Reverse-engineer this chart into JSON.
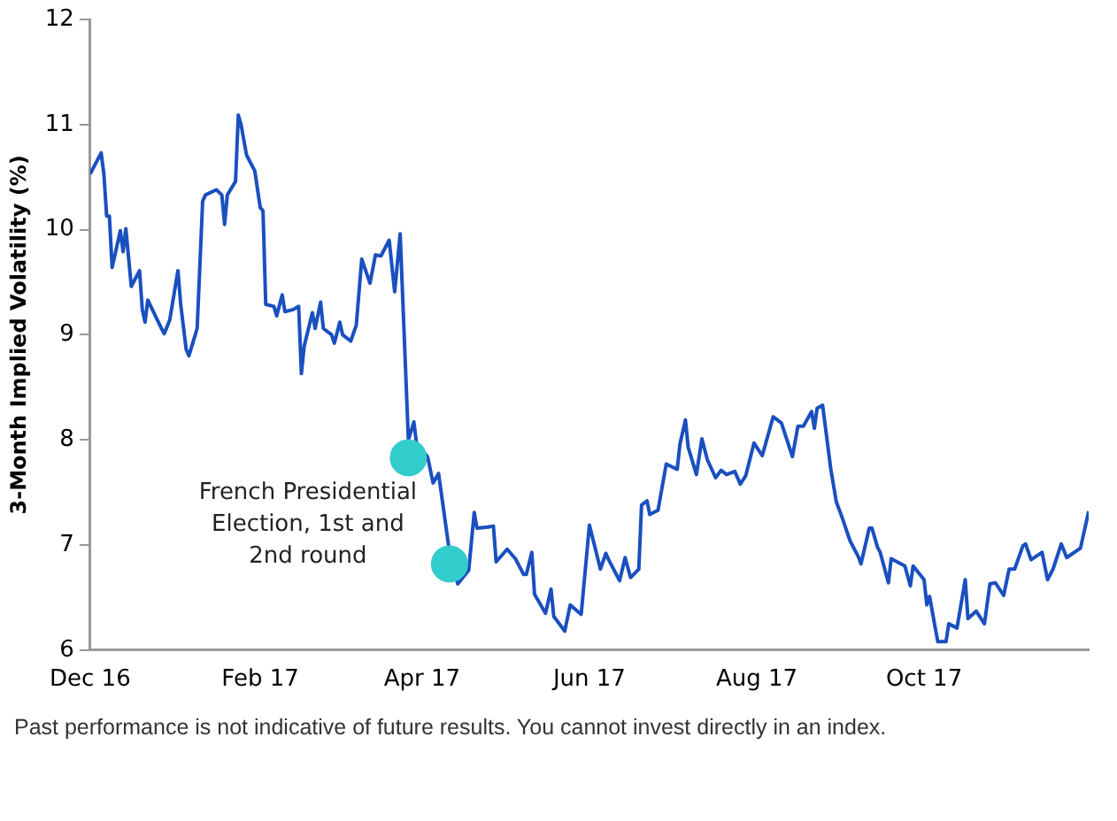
{
  "chart_data": {
    "type": "line",
    "ylabel": "3-Month Implied Volatility (%)",
    "xlim": [
      "2016-12-01",
      "2017-11-30"
    ],
    "xticks": [
      {
        "value": "2016-12-01",
        "label": "Dec 16"
      },
      {
        "value": "2017-02-01",
        "label": "Feb 17"
      },
      {
        "value": "2017-04-01",
        "label": "Apr 17"
      },
      {
        "value": "2017-06-01",
        "label": "Jun 17"
      },
      {
        "value": "2017-08-01",
        "label": "Aug 17"
      },
      {
        "value": "2017-10-01",
        "label": "Oct 17"
      }
    ],
    "ylim": [
      6,
      12
    ],
    "yticks": [
      6,
      7,
      8,
      9,
      10,
      11,
      12
    ],
    "marker": "none",
    "line_style": "solid",
    "legend": false,
    "series": [
      {
        "color": "#1a4fc0",
        "x": [
          "2016-12-01",
          "2016-12-05",
          "2016-12-06",
          "2016-12-07",
          "2016-12-08",
          "2016-12-09",
          "2016-12-12",
          "2016-12-13",
          "2016-12-14",
          "2016-12-16",
          "2016-12-19",
          "2016-12-20",
          "2016-12-21",
          "2016-12-22",
          "2016-12-27",
          "2016-12-28",
          "2016-12-30",
          "2017-01-02",
          "2017-01-03",
          "2017-01-05",
          "2017-01-06",
          "2017-01-09",
          "2017-01-11",
          "2017-01-12",
          "2017-01-16",
          "2017-01-18",
          "2017-01-19",
          "2017-01-20",
          "2017-01-23",
          "2017-01-24",
          "2017-01-25",
          "2017-01-27",
          "2017-01-30",
          "2017-02-01",
          "2017-02-02",
          "2017-02-03",
          "2017-02-06",
          "2017-02-07",
          "2017-02-09",
          "2017-02-10",
          "2017-02-13",
          "2017-02-15",
          "2017-02-16",
          "2017-02-17",
          "2017-02-20",
          "2017-02-21",
          "2017-02-23",
          "2017-02-24",
          "2017-02-27",
          "2017-02-28",
          "2017-03-02",
          "2017-03-03",
          "2017-03-06",
          "2017-03-08",
          "2017-03-10",
          "2017-03-13",
          "2017-03-15",
          "2017-03-17",
          "2017-03-20",
          "2017-03-22",
          "2017-03-24",
          "2017-03-27",
          "2017-03-29",
          "2017-03-30",
          "2017-04-03",
          "2017-04-05",
          "2017-04-07",
          "2017-04-11",
          "2017-04-14",
          "2017-04-18",
          "2017-04-20",
          "2017-04-21",
          "2017-04-25",
          "2017-04-27",
          "2017-04-28",
          "2017-05-02",
          "2017-05-05",
          "2017-05-08",
          "2017-05-09",
          "2017-05-11",
          "2017-05-12",
          "2017-05-16",
          "2017-05-18",
          "2017-05-19",
          "2017-05-23",
          "2017-05-25",
          "2017-05-29",
          "2017-06-01",
          "2017-06-05",
          "2017-06-07",
          "2017-06-08",
          "2017-06-12",
          "2017-06-14",
          "2017-06-16",
          "2017-06-19",
          "2017-06-20",
          "2017-06-22",
          "2017-06-23",
          "2017-06-26",
          "2017-06-29",
          "2017-07-03",
          "2017-07-04",
          "2017-07-06",
          "2017-07-07",
          "2017-07-10",
          "2017-07-12",
          "2017-07-14",
          "2017-07-17",
          "2017-07-19",
          "2017-07-21",
          "2017-07-24",
          "2017-07-26",
          "2017-07-28",
          "2017-07-31",
          "2017-08-03",
          "2017-08-07",
          "2017-08-10",
          "2017-08-14",
          "2017-08-16",
          "2017-08-18",
          "2017-08-21",
          "2017-08-22",
          "2017-08-23",
          "2017-08-25",
          "2017-08-28",
          "2017-08-30",
          "2017-09-01",
          "2017-09-04",
          "2017-09-07",
          "2017-09-08",
          "2017-09-11",
          "2017-09-12",
          "2017-09-14",
          "2017-09-15",
          "2017-09-18",
          "2017-09-19",
          "2017-09-24",
          "2017-09-26",
          "2017-09-27",
          "2017-10-01",
          "2017-10-02",
          "2017-10-03",
          "2017-10-05",
          "2017-10-06",
          "2017-10-09",
          "2017-10-10",
          "2017-10-13",
          "2017-10-16",
          "2017-10-17",
          "2017-10-20",
          "2017-10-23",
          "2017-10-25",
          "2017-10-27",
          "2017-10-30",
          "2017-11-01",
          "2017-11-03",
          "2017-11-06",
          "2017-11-07",
          "2017-11-09",
          "2017-11-13",
          "2017-11-15",
          "2017-11-17",
          "2017-11-20",
          "2017-11-22",
          "2017-11-27",
          "2017-11-30"
        ],
        "values": [
          10.53,
          10.73,
          10.53,
          10.13,
          10.13,
          9.64,
          9.99,
          9.79,
          10.01,
          9.46,
          9.61,
          9.24,
          9.12,
          9.33,
          9.06,
          9.01,
          9.14,
          9.61,
          9.29,
          8.86,
          8.8,
          9.06,
          10.27,
          10.33,
          10.38,
          10.33,
          10.05,
          10.33,
          10.46,
          11.09,
          11.0,
          10.71,
          10.56,
          10.21,
          10.18,
          9.29,
          9.27,
          9.18,
          9.38,
          9.22,
          9.24,
          9.27,
          8.63,
          8.89,
          9.21,
          9.06,
          9.31,
          9.06,
          9.0,
          8.92,
          9.12,
          9.0,
          8.94,
          9.09,
          9.72,
          9.49,
          9.76,
          9.75,
          9.9,
          9.41,
          9.96,
          8.0,
          8.17,
          7.96,
          7.84,
          7.59,
          7.68,
          6.93,
          6.63,
          6.76,
          7.31,
          7.16,
          7.17,
          7.18,
          6.84,
          6.96,
          6.87,
          6.72,
          6.72,
          6.93,
          6.53,
          6.35,
          6.58,
          6.32,
          6.18,
          6.43,
          6.34,
          7.19,
          6.77,
          6.92,
          6.86,
          6.66,
          6.88,
          6.69,
          6.77,
          7.38,
          7.42,
          7.29,
          7.33,
          7.77,
          7.72,
          7.96,
          8.19,
          7.93,
          7.67,
          8.01,
          7.81,
          7.64,
          7.71,
          7.67,
          7.7,
          7.58,
          7.66,
          7.97,
          7.85,
          8.22,
          8.16,
          7.84,
          8.13,
          8.13,
          8.27,
          8.11,
          8.3,
          8.33,
          7.72,
          7.41,
          7.27,
          7.04,
          6.89,
          6.82,
          7.16,
          7.16,
          6.98,
          6.93,
          6.64,
          6.87,
          6.8,
          6.61,
          6.8,
          6.67,
          6.43,
          6.51,
          6.22,
          6.08,
          6.08,
          6.25,
          6.21,
          6.67,
          6.3,
          6.37,
          6.25,
          6.63,
          6.64,
          6.52,
          6.77,
          6.77,
          6.99,
          7.01,
          6.86,
          6.93,
          6.67,
          6.77,
          7.01,
          6.88,
          6.97,
          7.32
        ]
      },
      {
        "type": "scatter",
        "color": "#33cccc",
        "marker": "circle",
        "x": [
          "2017-03-27",
          "2017-04-11"
        ],
        "values": [
          7.83,
          6.82
        ]
      }
    ],
    "annotations": [
      {
        "text": "French Presidential\nElection, 1st and\n2nd round",
        "x": "2017-04-11",
        "y": 6.82
      },
      "Past performance is not indicative of future results. You cannot invest directly in an index."
    ]
  }
}
